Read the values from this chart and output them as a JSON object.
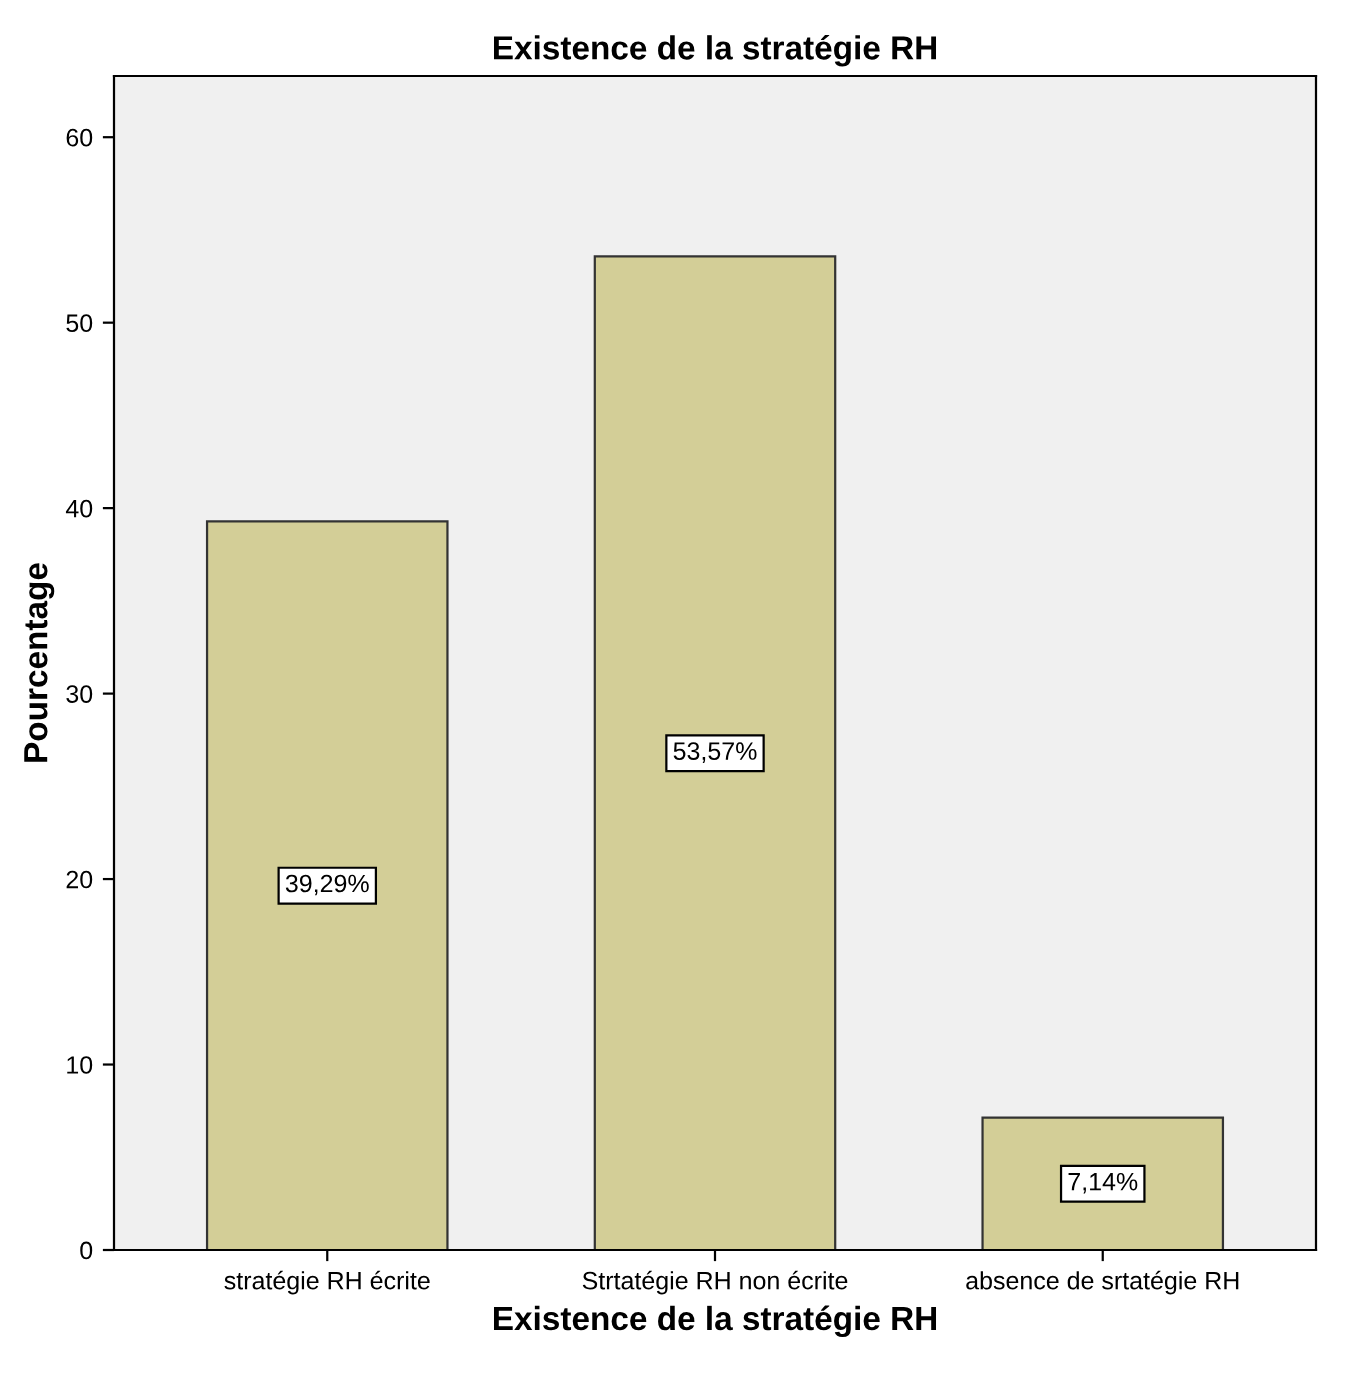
{
  "chart_data": {
    "type": "bar",
    "title": "Existence de la stratégie RH",
    "xlabel": "Existence de la stratégie RH",
    "ylabel": "Pourcentage",
    "categories": [
      "stratégie RH écrite",
      "Strtatégie RH non écrite",
      "absence de srtatégie RH"
    ],
    "values": [
      39.29,
      53.57,
      7.14
    ],
    "value_labels": [
      "39,29%",
      "53,57%",
      "7,14%"
    ],
    "color": "#d3ce97",
    "ylim": [
      0,
      63.3
    ],
    "yticks": [
      0,
      10,
      20,
      30,
      40,
      50,
      60
    ],
    "grid": false,
    "legend": false
  }
}
